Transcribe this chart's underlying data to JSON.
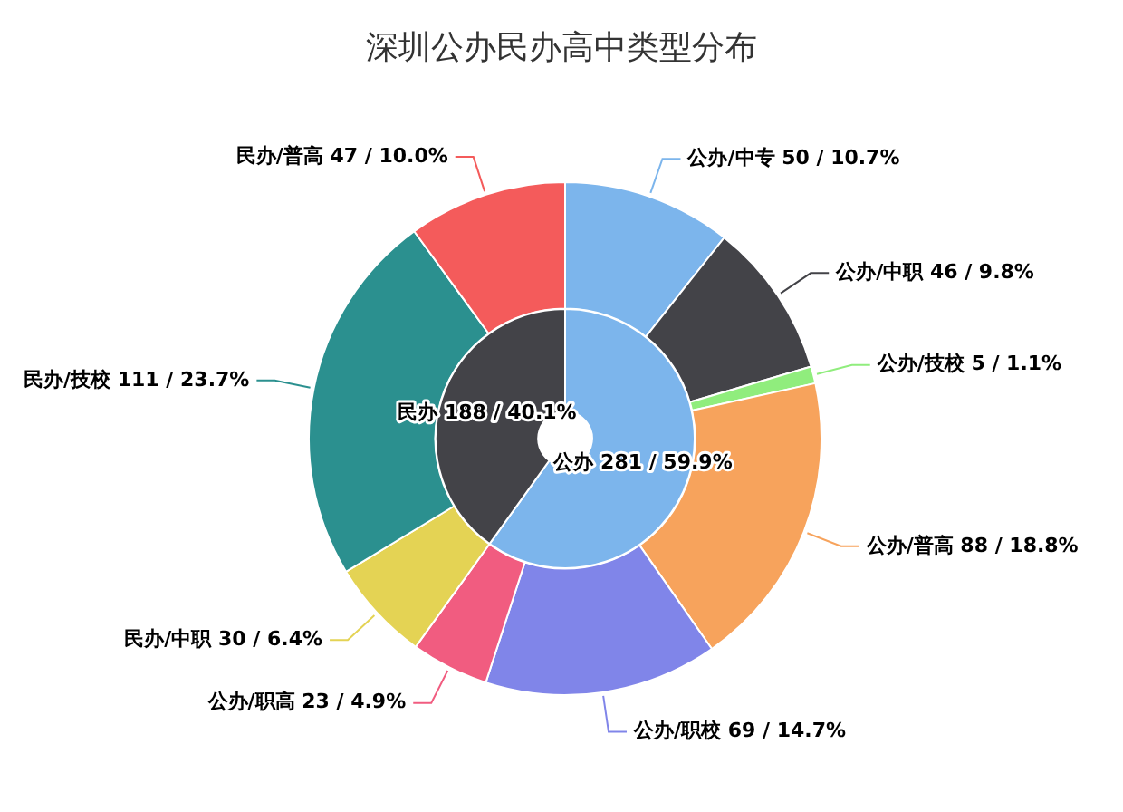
{
  "chart_data": [
    {
      "type": "donut",
      "title": "深圳公办民办高中类型分布",
      "categories": [
        "公办/中专",
        "公办/中职",
        "公办/技校",
        "公办/普高",
        "公办/职校",
        "公办/职高",
        "民办/中职",
        "民办/技校",
        "民办/普高"
      ],
      "values": [
        50,
        46,
        5,
        88,
        69,
        23,
        30,
        111,
        47
      ],
      "value_labels": [
        "50 / 10.7%",
        "46 / 9.8%",
        "5 / 1.1%",
        "88 / 18.8%",
        "69 / 14.7%",
        "23 / 4.9%",
        "30 / 6.4%",
        "111 / 23.7%",
        "47 / 10.0%"
      ],
      "colors": [
        "#7cb5ec",
        "#434348",
        "#90ed7d",
        "#f7a35c",
        "#8085e9",
        "#f15c80",
        "#e4d354",
        "#2b908f",
        "#f45b5b"
      ]
    },
    {
      "type": "donut",
      "categories": [
        "公办",
        "民办"
      ],
      "values": [
        281,
        188
      ],
      "value_labels": [
        "281 / 59.9%",
        "188 / 40.1%"
      ],
      "colors": [
        "#7cb5ec",
        "#434348"
      ]
    }
  ]
}
